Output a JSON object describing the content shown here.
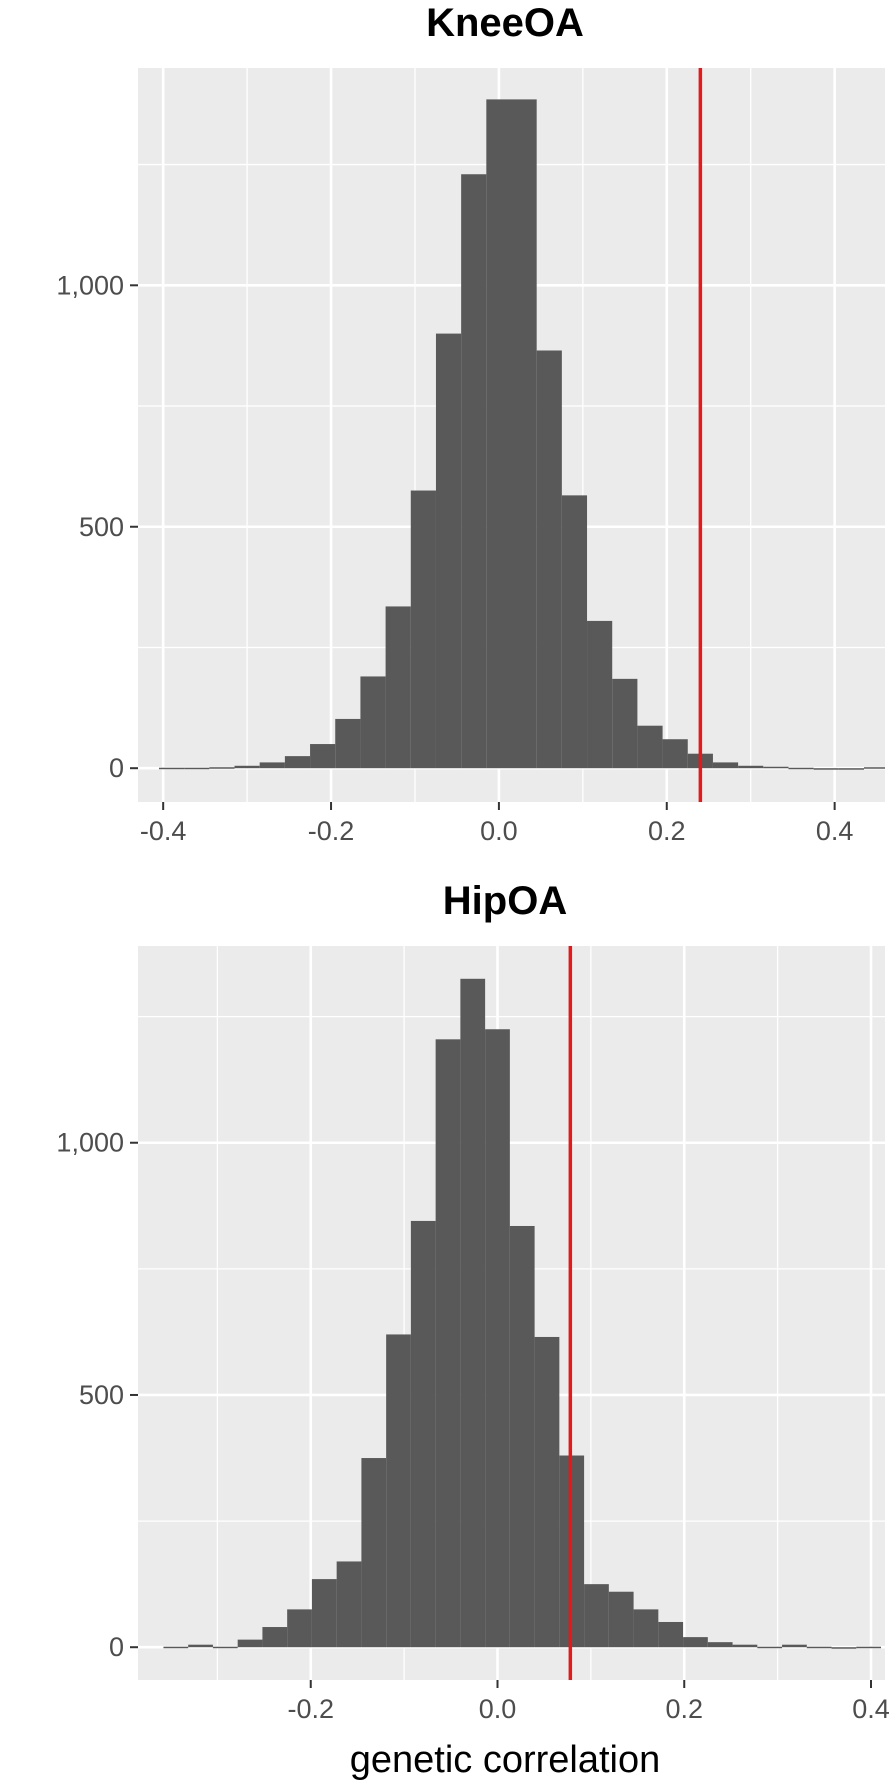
{
  "chart_data": [
    {
      "type": "bar",
      "title": "KneeOA",
      "xlabel": "",
      "ylabel": "",
      "xlim": [
        -0.43,
        0.46
      ],
      "ylim": [
        -70,
        1450
      ],
      "xticks": [
        -0.4,
        -0.2,
        0.0,
        0.2,
        0.4
      ],
      "xtick_labels": [
        "-0.4",
        "-0.2",
        "0.0",
        "0.2",
        "0.4"
      ],
      "yticks": [
        0,
        500,
        1000
      ],
      "ytick_labels": [
        "0",
        "500",
        "1,000"
      ],
      "grid": true,
      "bin_width": 0.03,
      "x": [
        -0.39,
        -0.36,
        -0.33,
        -0.3,
        -0.27,
        -0.24,
        -0.21,
        -0.18,
        -0.15,
        -0.12,
        -0.09,
        -0.06,
        -0.03,
        0.0,
        0.03,
        0.06,
        0.09,
        0.12,
        0.15,
        0.18,
        0.21,
        0.24,
        0.27,
        0.3,
        0.33,
        0.36,
        0.39,
        0.42,
        0.45
      ],
      "values": [
        1,
        1,
        2,
        5,
        12,
        25,
        50,
        102,
        190,
        335,
        575,
        900,
        1230,
        1385,
        1385,
        865,
        565,
        305,
        185,
        88,
        60,
        30,
        12,
        5,
        3,
        1,
        0,
        0,
        2
      ],
      "reference_line": 0.24,
      "reference_color": "#e31a1c",
      "bar_color": "#595959"
    },
    {
      "type": "bar",
      "title": "HipOA",
      "xlabel": "genetic correlation",
      "ylabel": "",
      "xlim": [
        -0.385,
        0.415
      ],
      "ylim": [
        -65,
        1390
      ],
      "xticks": [
        -0.2,
        0.0,
        0.2,
        0.4
      ],
      "xtick_labels": [
        "-0.2",
        "0.0",
        "0.2",
        "0.4"
      ],
      "yticks": [
        0,
        500,
        1000
      ],
      "ytick_labels": [
        "0",
        "500",
        "1,000"
      ],
      "grid": true,
      "bin_width": 0.0265,
      "x": [
        -0.3445,
        -0.318,
        -0.2915,
        -0.265,
        -0.2385,
        -0.212,
        -0.1855,
        -0.159,
        -0.1325,
        -0.106,
        -0.0795,
        -0.053,
        -0.0265,
        0.0,
        0.0265,
        0.053,
        0.0795,
        0.106,
        0.1325,
        0.159,
        0.1855,
        0.212,
        0.2385,
        0.265,
        0.2915,
        0.318,
        0.3445,
        0.371,
        0.3975
      ],
      "values": [
        1,
        5,
        1,
        15,
        40,
        75,
        135,
        170,
        375,
        620,
        845,
        1205,
        1325,
        1225,
        835,
        615,
        380,
        125,
        110,
        75,
        50,
        20,
        10,
        5,
        1,
        5,
        1,
        0,
        1
      ],
      "reference_line": 0.078,
      "reference_color": "#e31a1c",
      "bar_color": "#595959"
    }
  ]
}
